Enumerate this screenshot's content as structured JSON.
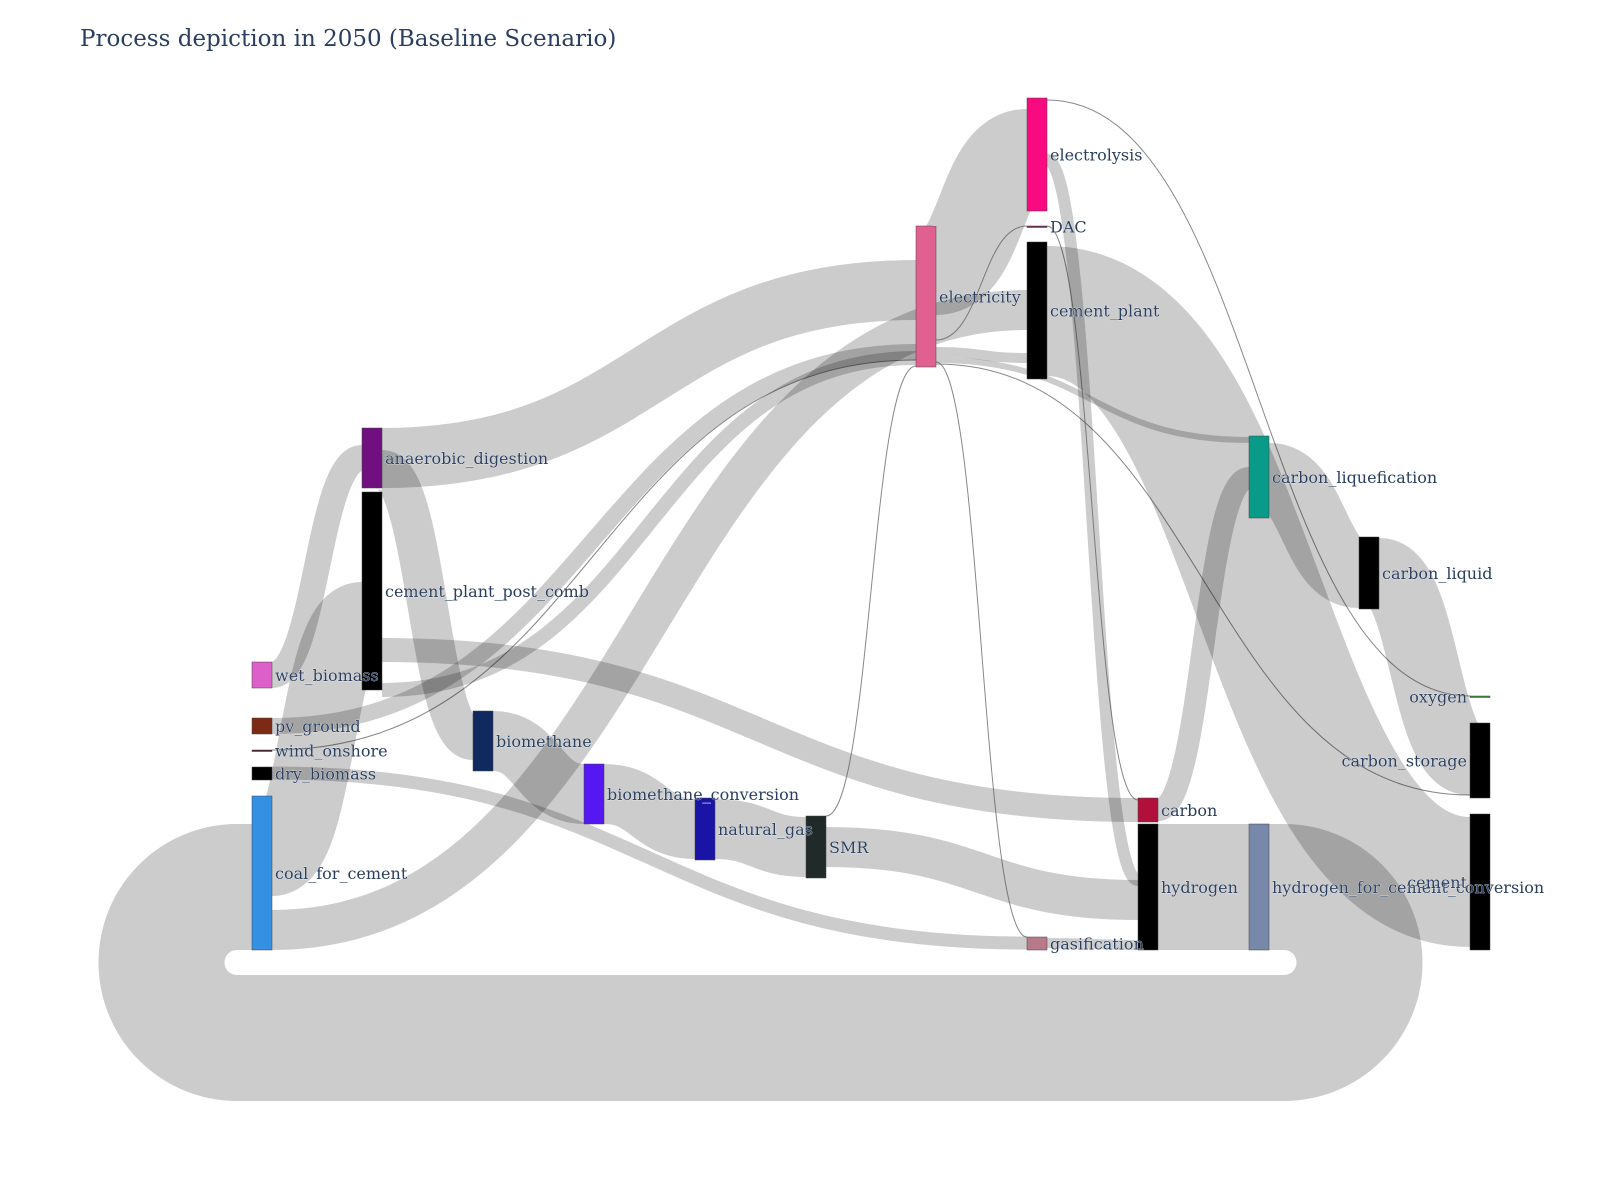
{
  "title": "Process depiction in 2050 (Baseline Scenario)",
  "chart_data": {
    "type": "sankey",
    "title": "Process depiction in 2050 (Baseline Scenario)",
    "link_color": "#c9c9c9",
    "nodes": [
      {
        "id": "wet_biomass",
        "label": "wet_biomass",
        "color": "#dd5fca"
      },
      {
        "id": "pv_ground",
        "label": "pv_ground",
        "color": "#7d2a14"
      },
      {
        "id": "wind_onshore",
        "label": "wind_onshore",
        "color": "#4a1a2a"
      },
      {
        "id": "dry_biomass",
        "label": "dry_biomass",
        "color": "#000000"
      },
      {
        "id": "coal_for_cement",
        "label": "coal_for_cement",
        "color": "#3390e3"
      },
      {
        "id": "anaerobic_digestion",
        "label": "anaerobic_digestion",
        "color": "#6f0f80"
      },
      {
        "id": "cement_plant_post_comb",
        "label": "cement_plant_post_comb",
        "color": "#000000"
      },
      {
        "id": "biomethane",
        "label": "biomethane",
        "color": "#102a60"
      },
      {
        "id": "biomethane_conversion",
        "label": "biomethane_conversion",
        "color": "#5518f2"
      },
      {
        "id": "natural_gas",
        "label": "natural_gas",
        "color": "#1a14a6"
      },
      {
        "id": "SMR",
        "label": "SMR",
        "color": "#202a28"
      },
      {
        "id": "electricity",
        "label": "electricity",
        "color": "#e06090"
      },
      {
        "id": "electrolysis",
        "label": "electrolysis",
        "color": "#fa0a80"
      },
      {
        "id": "DAC",
        "label": "DAC",
        "color": "#6a2a4a"
      },
      {
        "id": "cement_plant",
        "label": "cement_plant",
        "color": "#000000"
      },
      {
        "id": "gasification",
        "label": "gasification",
        "color": "#b87a8a"
      },
      {
        "id": "carbon",
        "label": "carbon",
        "color": "#b0103a"
      },
      {
        "id": "hydrogen",
        "label": "hydrogen",
        "color": "#000000"
      },
      {
        "id": "carbon_liquefication",
        "label": "carbon_liquefication",
        "color": "#0a9a88"
      },
      {
        "id": "hydrogen_for_cement_conversion",
        "label": "hydrogen_for_cement_conversion",
        "color": "#7888aa"
      },
      {
        "id": "carbon_liquid",
        "label": "carbon_liquid",
        "color": "#000000"
      },
      {
        "id": "oxygen",
        "label": "oxygen",
        "color": "#3a8a3a"
      },
      {
        "id": "carbon_storage",
        "label": "carbon_storage",
        "color": "#000000"
      },
      {
        "id": "cement",
        "label": "cement",
        "color": "#000000"
      }
    ],
    "links": [
      {
        "source": "wet_biomass",
        "target": "anaerobic_digestion",
        "value": 26
      },
      {
        "source": "pv_ground",
        "target": "electricity",
        "value": 16
      },
      {
        "source": "wind_onshore",
        "target": "electricity",
        "value": 1
      },
      {
        "source": "dry_biomass",
        "target": "gasification",
        "value": 13
      },
      {
        "source": "coal_for_cement",
        "target": "cement_plant_post_comb",
        "value": 76
      },
      {
        "source": "coal_for_cement",
        "target": "cement_plant",
        "value": 105
      },
      {
        "source": "coal_for_cement",
        "target": "hydrogen_for_cement_conversion",
        "value": 126
      },
      {
        "source": "anaerobic_digestion",
        "target": "electricity",
        "value": 60
      },
      {
        "source": "cement_plant_post_comb",
        "target": "electricity",
        "value": 18
      },
      {
        "source": "cement_plant_post_comb",
        "target": "carbon",
        "value": 190
      },
      {
        "source": "anaerobic_digestion",
        "target": "biomethane",
        "value": 60
      },
      {
        "source": "biomethane",
        "target": "biomethane_conversion",
        "value": 60
      },
      {
        "source": "biomethane_conversion",
        "target": "natural_gas",
        "value": 60
      },
      {
        "source": "natural_gas",
        "target": "SMR",
        "value": 60
      },
      {
        "source": "SMR",
        "target": "electricity",
        "value": 1
      },
      {
        "source": "SMR",
        "target": "hydrogen",
        "value": 60
      },
      {
        "source": "electricity",
        "target": "electrolysis",
        "value": 100
      },
      {
        "source": "electricity",
        "target": "DAC",
        "value": 1
      },
      {
        "source": "electricity",
        "target": "cement_plant",
        "value": 10
      },
      {
        "source": "electricity",
        "target": "gasification",
        "value": 1
      },
      {
        "source": "electricity",
        "target": "carbon_liquefication",
        "value": 6
      },
      {
        "source": "electricity",
        "target": "carbon_storage",
        "value": 1
      },
      {
        "source": "electrolysis",
        "target": "hydrogen",
        "value": 110
      },
      {
        "source": "electrolysis",
        "target": "oxygen",
        "value": 1
      },
      {
        "source": "DAC",
        "target": "carbon",
        "value": 1
      },
      {
        "source": "cement_plant",
        "target": "cement",
        "value": 130
      },
      {
        "source": "gasification",
        "target": "hydrogen",
        "value": 13
      },
      {
        "source": "carbon",
        "target": "carbon_liquefication",
        "value": 80
      },
      {
        "source": "hydrogen",
        "target": "hydrogen_for_cement_conversion",
        "value": 126
      },
      {
        "source": "carbon_liquefication",
        "target": "carbon_liquid",
        "value": 70
      },
      {
        "source": "carbon_liquid",
        "target": "carbon_storage",
        "value": 70
      },
      {
        "source": "hydrogen_for_cement_conversion",
        "target": "coal_for_cement",
        "value": 126
      }
    ]
  }
}
